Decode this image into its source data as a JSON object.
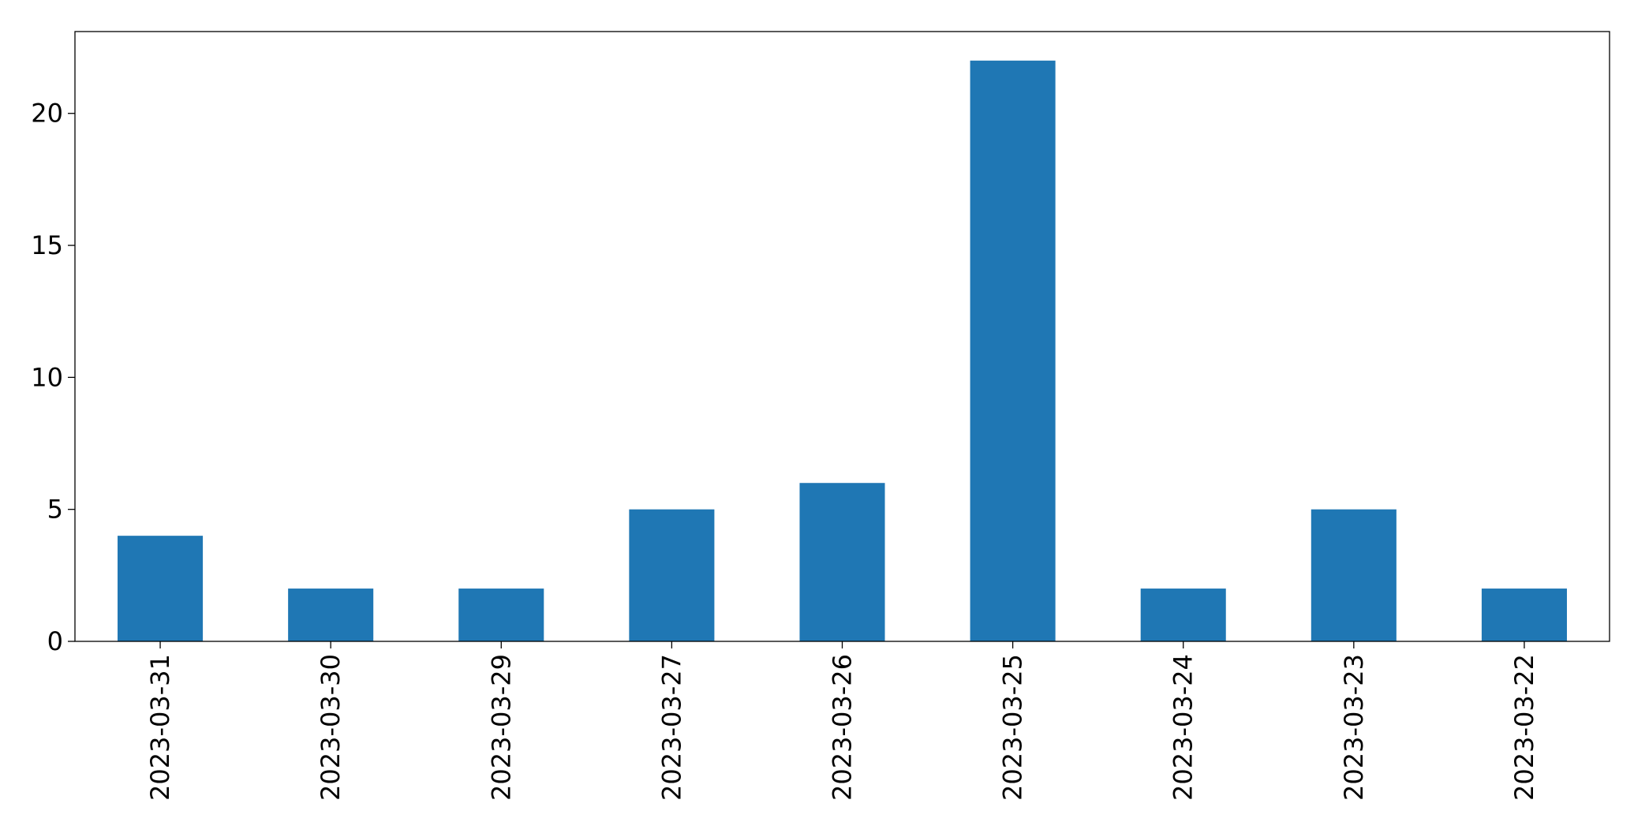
{
  "chart_data": {
    "type": "bar",
    "categories": [
      "2023-03-31",
      "2023-03-30",
      "2023-03-29",
      "2023-03-27",
      "2023-03-26",
      "2023-03-25",
      "2023-03-24",
      "2023-03-23",
      "2023-03-22"
    ],
    "values": [
      4,
      2,
      2,
      5,
      6,
      22,
      2,
      5,
      2
    ],
    "title": "",
    "xlabel": "",
    "ylabel": "",
    "ylim": [
      0,
      23.1
    ],
    "yticks": [
      0,
      5,
      10,
      15,
      20
    ],
    "bar_color": "#1f77b4",
    "grid": false,
    "legend": false
  }
}
